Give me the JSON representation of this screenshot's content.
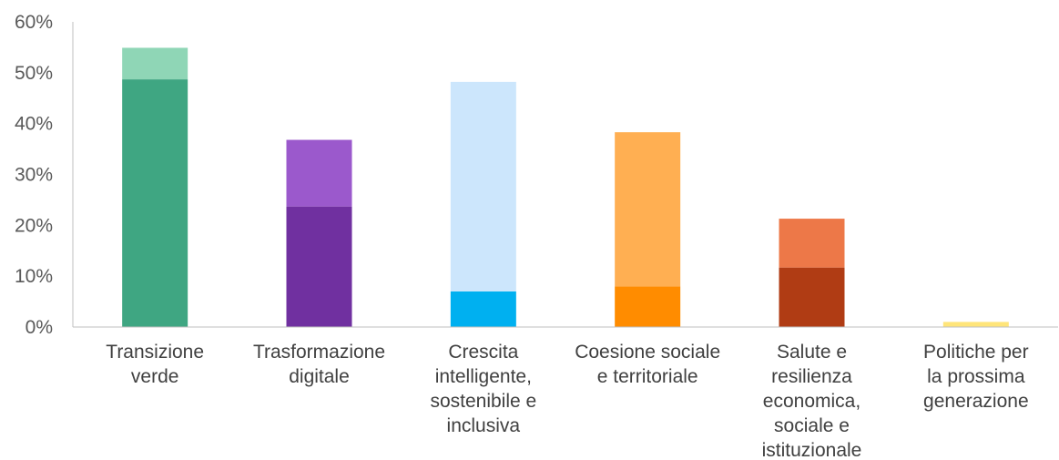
{
  "chart_data": {
    "type": "bar",
    "stacked": true,
    "categories": [
      [
        "Transizione",
        "verde"
      ],
      [
        "Trasformazione",
        "digitale"
      ],
      [
        "Crescita",
        "intelligente,",
        "sostenibile e",
        "inclusiva"
      ],
      [
        "Coesione sociale",
        "e territoriale"
      ],
      [
        "Salute e",
        "resilienza",
        "economica,",
        "sociale e",
        "istituzionale"
      ],
      [
        "Politiche per",
        "la prossima",
        "generazione"
      ]
    ],
    "series": [
      {
        "values": [
          48.7,
          23.7,
          7.0,
          8.0,
          11.7,
          1.0
        ]
      },
      {
        "values": [
          6.2,
          13.1,
          41.2,
          30.3,
          9.6,
          0
        ]
      }
    ],
    "colors": {
      "base": [
        "#3fa682",
        "#7030a0",
        "#00b0f0",
        "#ff8c00",
        "#b03c14",
        "#ffe57a"
      ],
      "top": [
        "#8fd6b6",
        "#9b59cc",
        "#cce6fc",
        "#ffaf52",
        "#ed7848",
        "#ffe57a"
      ]
    },
    "ylim": [
      0,
      60
    ],
    "yticks": [
      "0%",
      "10%",
      "20%",
      "30%",
      "40%",
      "50%",
      "60%"
    ],
    "grid": false,
    "legend": "none"
  }
}
